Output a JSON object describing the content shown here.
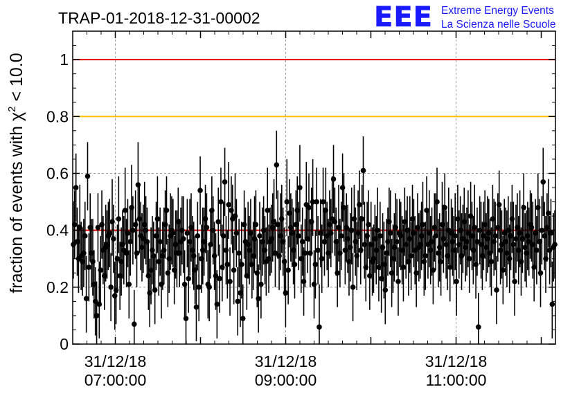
{
  "header": {
    "title": "TRAP-01-2018-12-31-00002",
    "logo_text": "EEE",
    "logo_line1": "Extreme Energy Events",
    "logo_line2": "La Scienza nelle Scuole"
  },
  "colors": {
    "logo_blue": "#1a1aff",
    "data_points": "#000000",
    "reference_red": "#e00000",
    "reference_orange": "#ffc000",
    "grid": "#9a9a9a"
  },
  "chart_data": {
    "type": "scatter",
    "title": "TRAP-01-2018-12-31-00002",
    "xlabel": "",
    "ylabel": "fraction of events with χ² < 10.0",
    "ylabel_main": "fraction of events with ",
    "ylabel_chi": "χ",
    "ylabel_sup": "2",
    "ylabel_tail": " < 10.0",
    "ylim": [
      0,
      1.1
    ],
    "yticks": [
      0,
      0.2,
      0.4,
      0.6,
      0.8,
      1
    ],
    "ytick_labels": [
      "0",
      "0.2",
      "0.4",
      "0.6",
      "0.8",
      "1"
    ],
    "xlim": [
      "2018-12-31 06:30",
      "2018-12-31 12:10"
    ],
    "xticks": [
      {
        "date": "31/12/18",
        "time": "07:00:00"
      },
      {
        "date": "31/12/18",
        "time": "09:00:00"
      },
      {
        "date": "31/12/18",
        "time": "11:00:00"
      }
    ],
    "reference_lines": [
      {
        "y": 1.0,
        "color": "#e00000"
      },
      {
        "y": 0.8,
        "color": "#ffc000"
      },
      {
        "y": 0.4,
        "color": "#e00000"
      }
    ],
    "grid": true,
    "series": [
      {
        "marker": "circle",
        "color": "#000000",
        "error_bars": true,
        "error_half_width_typical": 0.12,
        "start": "2018-12-31 06:30",
        "end": "2018-12-31 12:10",
        "y": [
          0.35,
          0.42,
          0.55,
          0.36,
          0.3,
          0.41,
          0.31,
          0.29,
          0.32,
          0.38,
          0.16,
          0.59,
          0.27,
          0.41,
          0.32,
          0.29,
          0.21,
          0.15,
          0.1,
          0.41,
          0.14,
          0.26,
          0.42,
          0.33,
          0.24,
          0.34,
          0.35,
          0.38,
          0.39,
          0.2,
          0.43,
          0.37,
          0.17,
          0.19,
          0.3,
          0.44,
          0.24,
          0.29,
          0.35,
          0.33,
          0.47,
          0.32,
          0.39,
          0.21,
          0.36,
          0.48,
          0.4,
          0.07,
          0.42,
          0.32,
          0.56,
          0.44,
          0.38,
          0.34,
          0.37,
          0.42,
          0.4,
          0.36,
          0.24,
          0.18,
          0.26,
          0.33,
          0.31,
          0.19,
          0.38,
          0.44,
          0.29,
          0.36,
          0.21,
          0.31,
          0.33,
          0.42,
          0.47,
          0.25,
          0.3,
          0.38,
          0.4,
          0.39,
          0.26,
          0.35,
          0.32,
          0.43,
          0.32,
          0.36,
          0.4,
          0.37,
          0.21,
          0.09,
          0.39,
          0.23,
          0.36,
          0.41,
          0.33,
          0.31,
          0.26,
          0.13,
          0.38,
          0.2,
          0.54,
          0.3,
          0.33,
          0.36,
          0.44,
          0.41,
          0.21,
          0.2,
          0.35,
          0.47,
          0.4,
          0.31,
          0.24,
          0.14,
          0.43,
          0.23,
          0.5,
          0.27,
          0.38,
          0.57,
          0.33,
          0.28,
          0.49,
          0.22,
          0.47,
          0.44,
          0.26,
          0.45,
          0.39,
          0.15,
          0.32,
          0.18,
          0.28,
          0.09,
          0.42,
          0.36,
          0.24,
          0.35,
          0.33,
          0.39,
          0.28,
          0.31,
          0.37,
          0.42,
          0.25,
          0.16,
          0.38,
          0.21,
          0.36,
          0.4,
          0.33,
          0.29,
          0.47,
          0.3,
          0.36,
          0.37,
          0.41,
          0.43,
          0.32,
          0.63,
          0.42,
          0.31,
          0.38,
          0.44,
          0.36,
          0.29,
          0.18,
          0.5,
          0.26,
          0.46,
          0.41,
          0.39,
          0.33,
          0.28,
          0.42,
          0.47,
          0.38,
          0.55,
          0.3,
          0.36,
          0.22,
          0.32,
          0.49,
          0.37,
          0.48,
          0.32,
          0.43,
          0.5,
          0.21,
          0.28,
          0.5,
          0.33,
          0.06,
          0.39,
          0.3,
          0.5,
          0.36,
          0.47,
          0.38,
          0.32,
          0.42,
          0.39,
          0.44,
          0.58,
          0.43,
          0.36,
          0.25,
          0.41,
          0.32,
          0.38,
          0.55,
          0.48,
          0.33,
          0.41,
          0.37,
          0.29,
          0.34,
          0.4,
          0.2,
          0.44,
          0.36,
          0.31,
          0.39,
          0.49,
          0.33,
          0.44,
          0.61,
          0.35,
          0.27,
          0.38,
          0.42,
          0.24,
          0.35,
          0.29,
          0.3,
          0.37,
          0.33,
          0.4,
          0.27,
          0.38,
          0.23,
          0.34,
          0.28,
          0.19,
          0.32,
          0.36,
          0.43,
          0.39,
          0.25,
          0.3,
          0.34,
          0.41,
          0.36,
          0.22,
          0.39,
          0.38,
          0.33,
          0.27,
          0.43,
          0.35,
          0.4,
          0.29,
          0.37,
          0.31,
          0.44,
          0.39,
          0.33,
          0.25,
          0.41,
          0.34,
          0.35,
          0.38,
          0.42,
          0.29,
          0.31,
          0.47,
          0.35,
          0.39,
          0.33,
          0.36,
          0.26,
          0.41,
          0.38,
          0.5,
          0.32,
          0.34,
          0.29,
          0.42,
          0.37,
          0.48,
          0.35,
          0.31,
          0.4,
          0.27,
          0.39,
          0.36,
          0.33,
          0.38,
          0.22,
          0.44,
          0.35,
          0.4,
          0.31,
          0.37,
          0.43,
          0.34,
          0.36,
          0.39,
          0.3,
          0.45,
          0.38,
          0.33,
          0.41,
          0.28,
          0.36,
          0.06,
          0.4,
          0.35,
          0.31,
          0.38,
          0.42,
          0.34,
          0.37,
          0.39,
          0.32,
          0.29,
          0.44,
          0.36,
          0.38,
          0.19,
          0.41,
          0.49,
          0.33,
          0.35,
          0.26,
          0.39,
          0.36,
          0.32,
          0.4,
          0.3,
          0.38,
          0.44,
          0.35,
          0.22,
          0.37,
          0.41,
          0.33,
          0.39,
          0.29,
          0.37,
          0.48,
          0.34,
          0.32,
          0.38,
          0.36,
          0.42,
          0.41,
          0.35,
          0.27,
          0.39,
          0.33,
          0.48,
          0.36,
          0.25,
          0.4,
          0.57,
          0.38,
          0.3,
          0.41,
          0.46,
          0.33,
          0.39,
          0.14,
          0.34,
          0.35
        ]
      }
    ]
  }
}
